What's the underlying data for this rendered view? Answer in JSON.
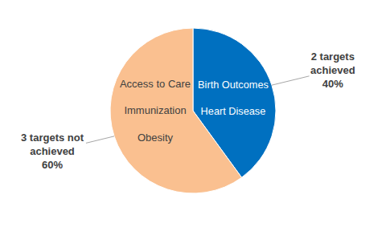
{
  "chart_data": {
    "type": "pie",
    "categories": [
      "2 targets achieved",
      "3 targets not achieved"
    ],
    "values": [
      40,
      60
    ],
    "value_labels": [
      "40%",
      "60%"
    ],
    "colors": [
      "#0070c0",
      "#fac090"
    ],
    "slice_items": [
      [
        "Birth Outcomes",
        "Heart Disease"
      ],
      [
        "Access to Care",
        "Immunization",
        "Obesity"
      ]
    ],
    "data_labels": true
  }
}
